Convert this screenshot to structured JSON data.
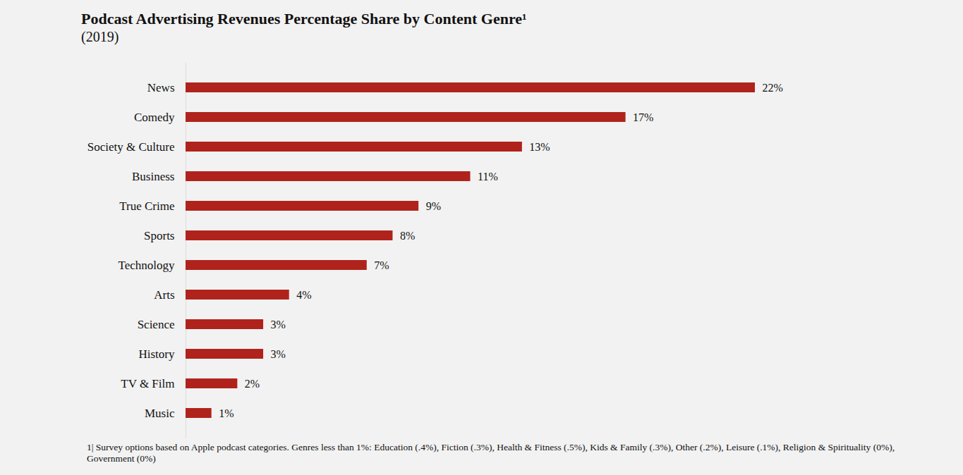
{
  "chart_data": {
    "type": "bar",
    "orientation": "horizontal",
    "title": "Podcast Advertising Revenues Percentage Share by Content Genre¹",
    "subtitle": "(2019)",
    "categories": [
      "News",
      "Comedy",
      "Society & Culture",
      "Business",
      "True Crime",
      "Sports",
      "Technology",
      "Arts",
      "Science",
      "History",
      "TV & Film",
      "Music"
    ],
    "values": [
      22,
      17,
      13,
      11,
      9,
      8,
      7,
      4,
      3,
      3,
      2,
      1
    ],
    "value_labels": [
      "22%",
      "17%",
      "13%",
      "11%",
      "9%",
      "8%",
      "7%",
      "4%",
      "3%",
      "3%",
      "2%",
      "1%"
    ],
    "data_labels": true,
    "color": "#b0231c",
    "xlim": [
      0,
      22
    ],
    "tick_labels": "y",
    "grid": false,
    "annotations": [
      "1| Survey options based on Apple podcast categories. Genres less than 1%: Education (.4%), Fiction (.3%), Health & Fitness (.5%), Kids & Family (.3%), Other (.2%), Leisure (.1%), Religion & Spirituality (0%), Government (0%)"
    ]
  }
}
